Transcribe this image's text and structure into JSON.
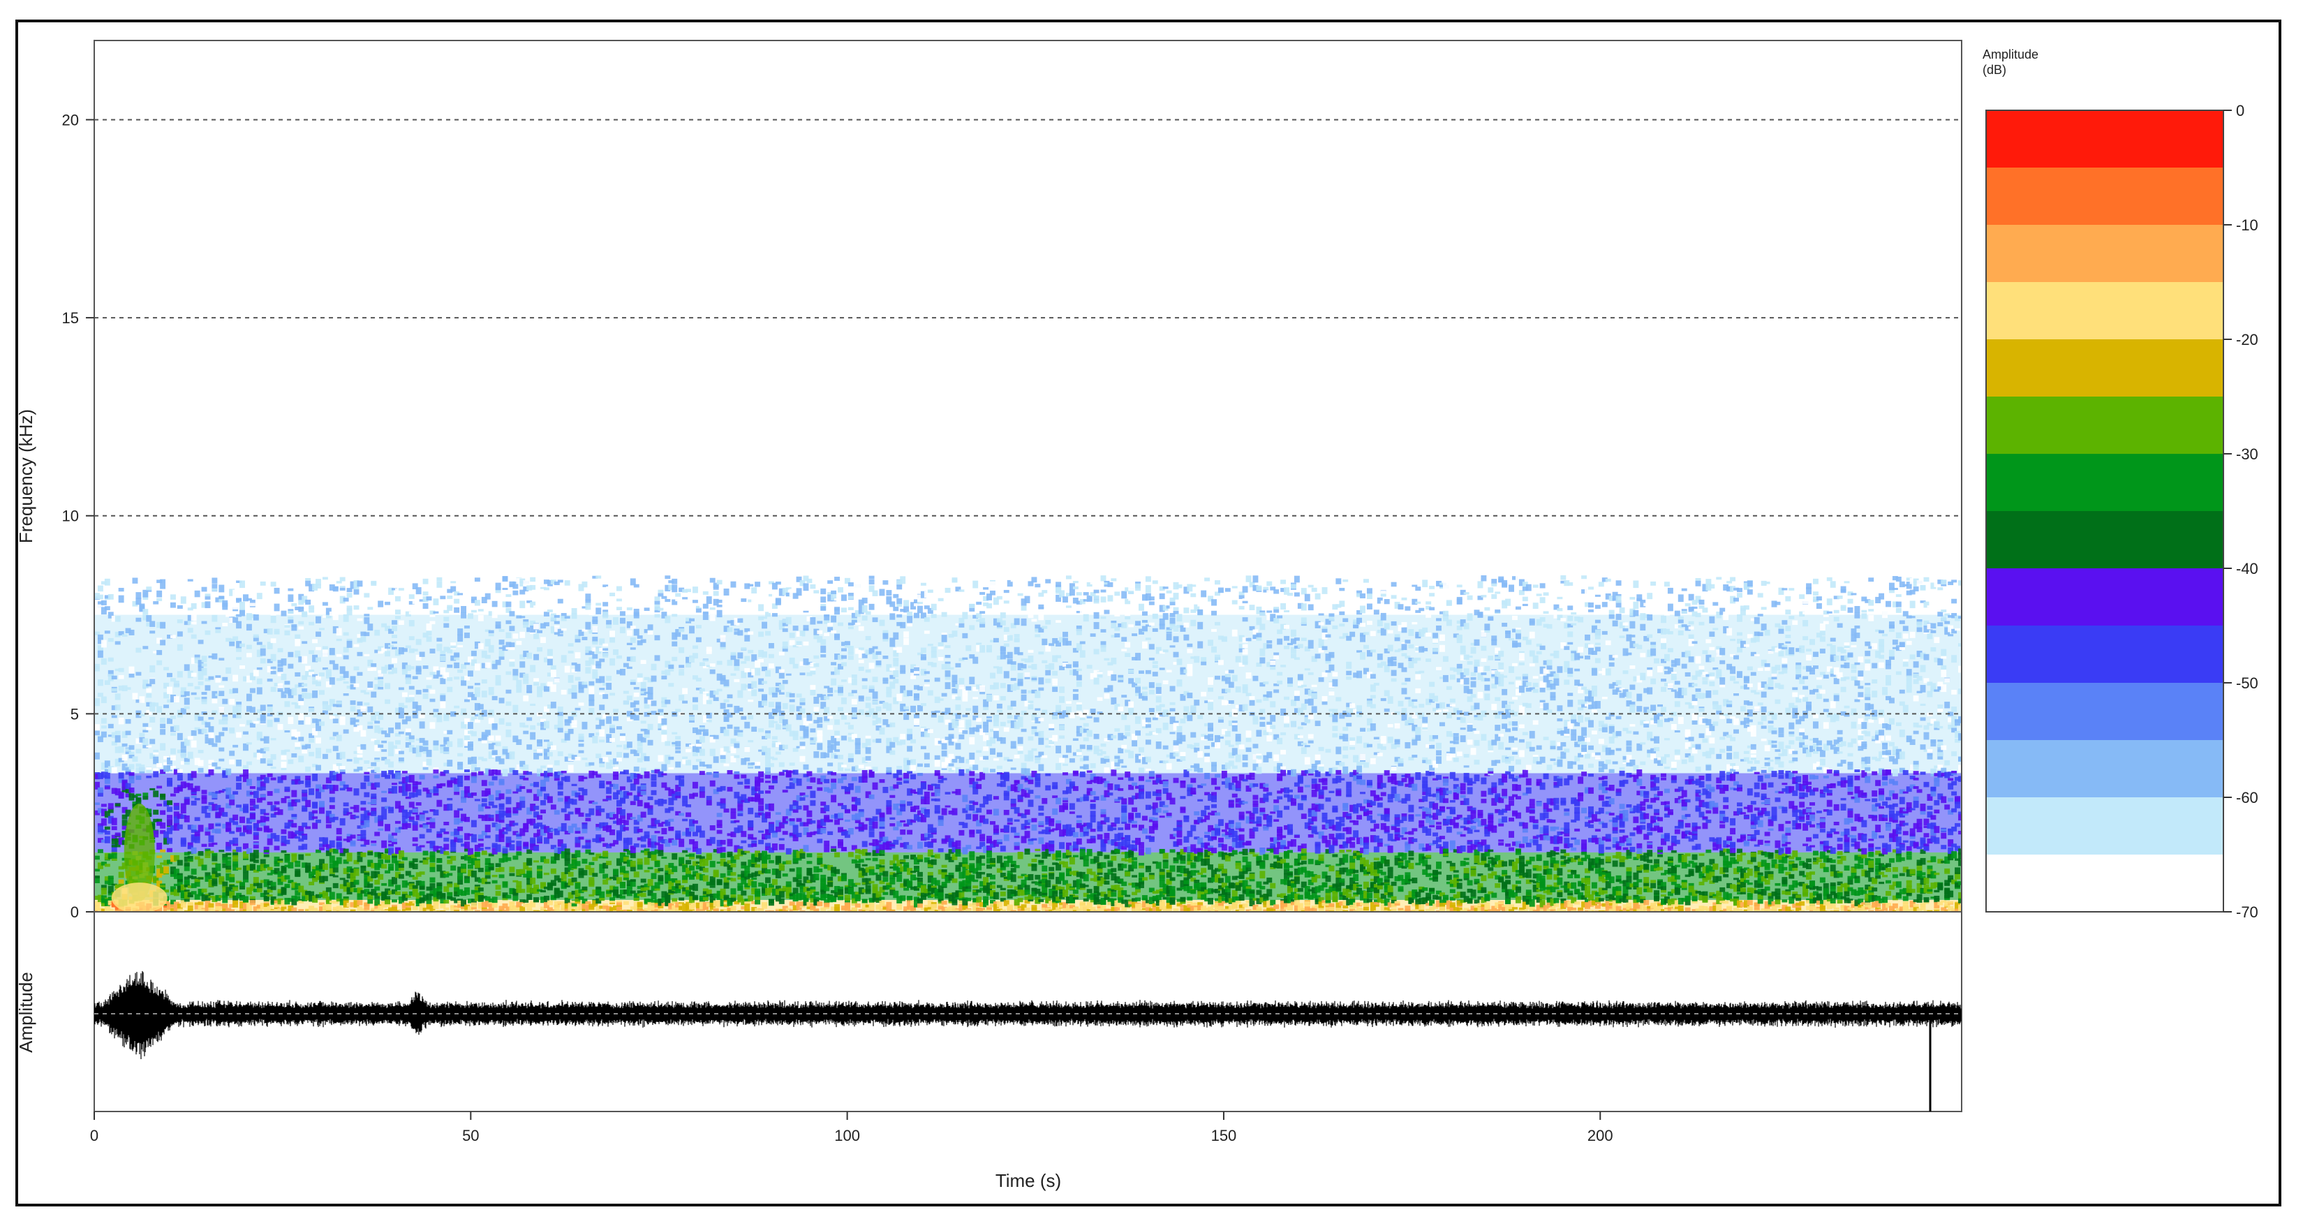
{
  "chart_data": {
    "type": "heatmap",
    "subtype": "spectrogram-with-oscillogram",
    "spectrogram": {
      "xlabel": "Time (s)",
      "ylabel": "Frequency (kHz)",
      "xlim": [
        0,
        248
      ],
      "ylim": [
        0,
        22
      ],
      "x_ticks": [
        "0",
        "50",
        "100",
        "150",
        "200"
      ],
      "x_tick_values": [
        0,
        50,
        100,
        150,
        200
      ],
      "y_ticks": [
        "0",
        "5",
        "10",
        "15",
        "20"
      ],
      "y_tick_values": [
        0,
        5,
        10,
        15,
        20
      ],
      "grid": "horizontal dashed at 5, 10, 15, 20 kHz",
      "description_of_energy": [
        {
          "freq_range_khz": [
            0,
            0.3
          ],
          "level_db": -15,
          "note": "yellow/orange band near 0 kHz"
        },
        {
          "freq_range_khz": [
            0.3,
            1.5
          ],
          "level_db": -30,
          "note": "green band"
        },
        {
          "freq_range_khz": [
            1.5,
            3.5
          ],
          "level_db": -45,
          "note": "blue-violet band"
        },
        {
          "freq_range_khz": [
            3.5,
            7.5
          ],
          "level_db": -60,
          "note": "light-blue speckle"
        }
      ],
      "hotspot": {
        "time_s": 6,
        "freq_khz": 1.5,
        "level_db": -25
      }
    },
    "oscillogram": {
      "ylabel": "Amplitude",
      "xlim": [
        0,
        248
      ],
      "peak_time_s": 6,
      "secondary_peak_time_s": 43
    },
    "colorbar": {
      "title_line1": "Amplitude",
      "title_line2": "(dB)",
      "ticks": [
        "0",
        "-10",
        "-20",
        "-30",
        "-40",
        "-50",
        "-60",
        "-70"
      ],
      "tick_values": [
        0,
        -10,
        -20,
        -30,
        -40,
        -50,
        -60,
        -70
      ],
      "range": [
        -70,
        0
      ],
      "bands": [
        {
          "from": 0,
          "to": -5,
          "color": "#ff1a0a"
        },
        {
          "from": -5,
          "to": -10,
          "color": "#ff7128"
        },
        {
          "from": -10,
          "to": -15,
          "color": "#ffab50"
        },
        {
          "from": -15,
          "to": -20,
          "color": "#ffe07a"
        },
        {
          "from": -20,
          "to": -25,
          "color": "#d8b400"
        },
        {
          "from": -25,
          "to": -30,
          "color": "#5cb300"
        },
        {
          "from": -30,
          "to": -35,
          "color": "#00961a"
        },
        {
          "from": -35,
          "to": -40,
          "color": "#007018"
        },
        {
          "from": -40,
          "to": -45,
          "color": "#5a10f0"
        },
        {
          "from": -45,
          "to": -50,
          "color": "#3a3cf5"
        },
        {
          "from": -50,
          "to": -55,
          "color": "#5a82f7"
        },
        {
          "from": -55,
          "to": -60,
          "color": "#86baf6"
        },
        {
          "from": -60,
          "to": -65,
          "color": "#c2e9fa"
        },
        {
          "from": -65,
          "to": -70,
          "color": "#ffffff"
        }
      ]
    }
  }
}
